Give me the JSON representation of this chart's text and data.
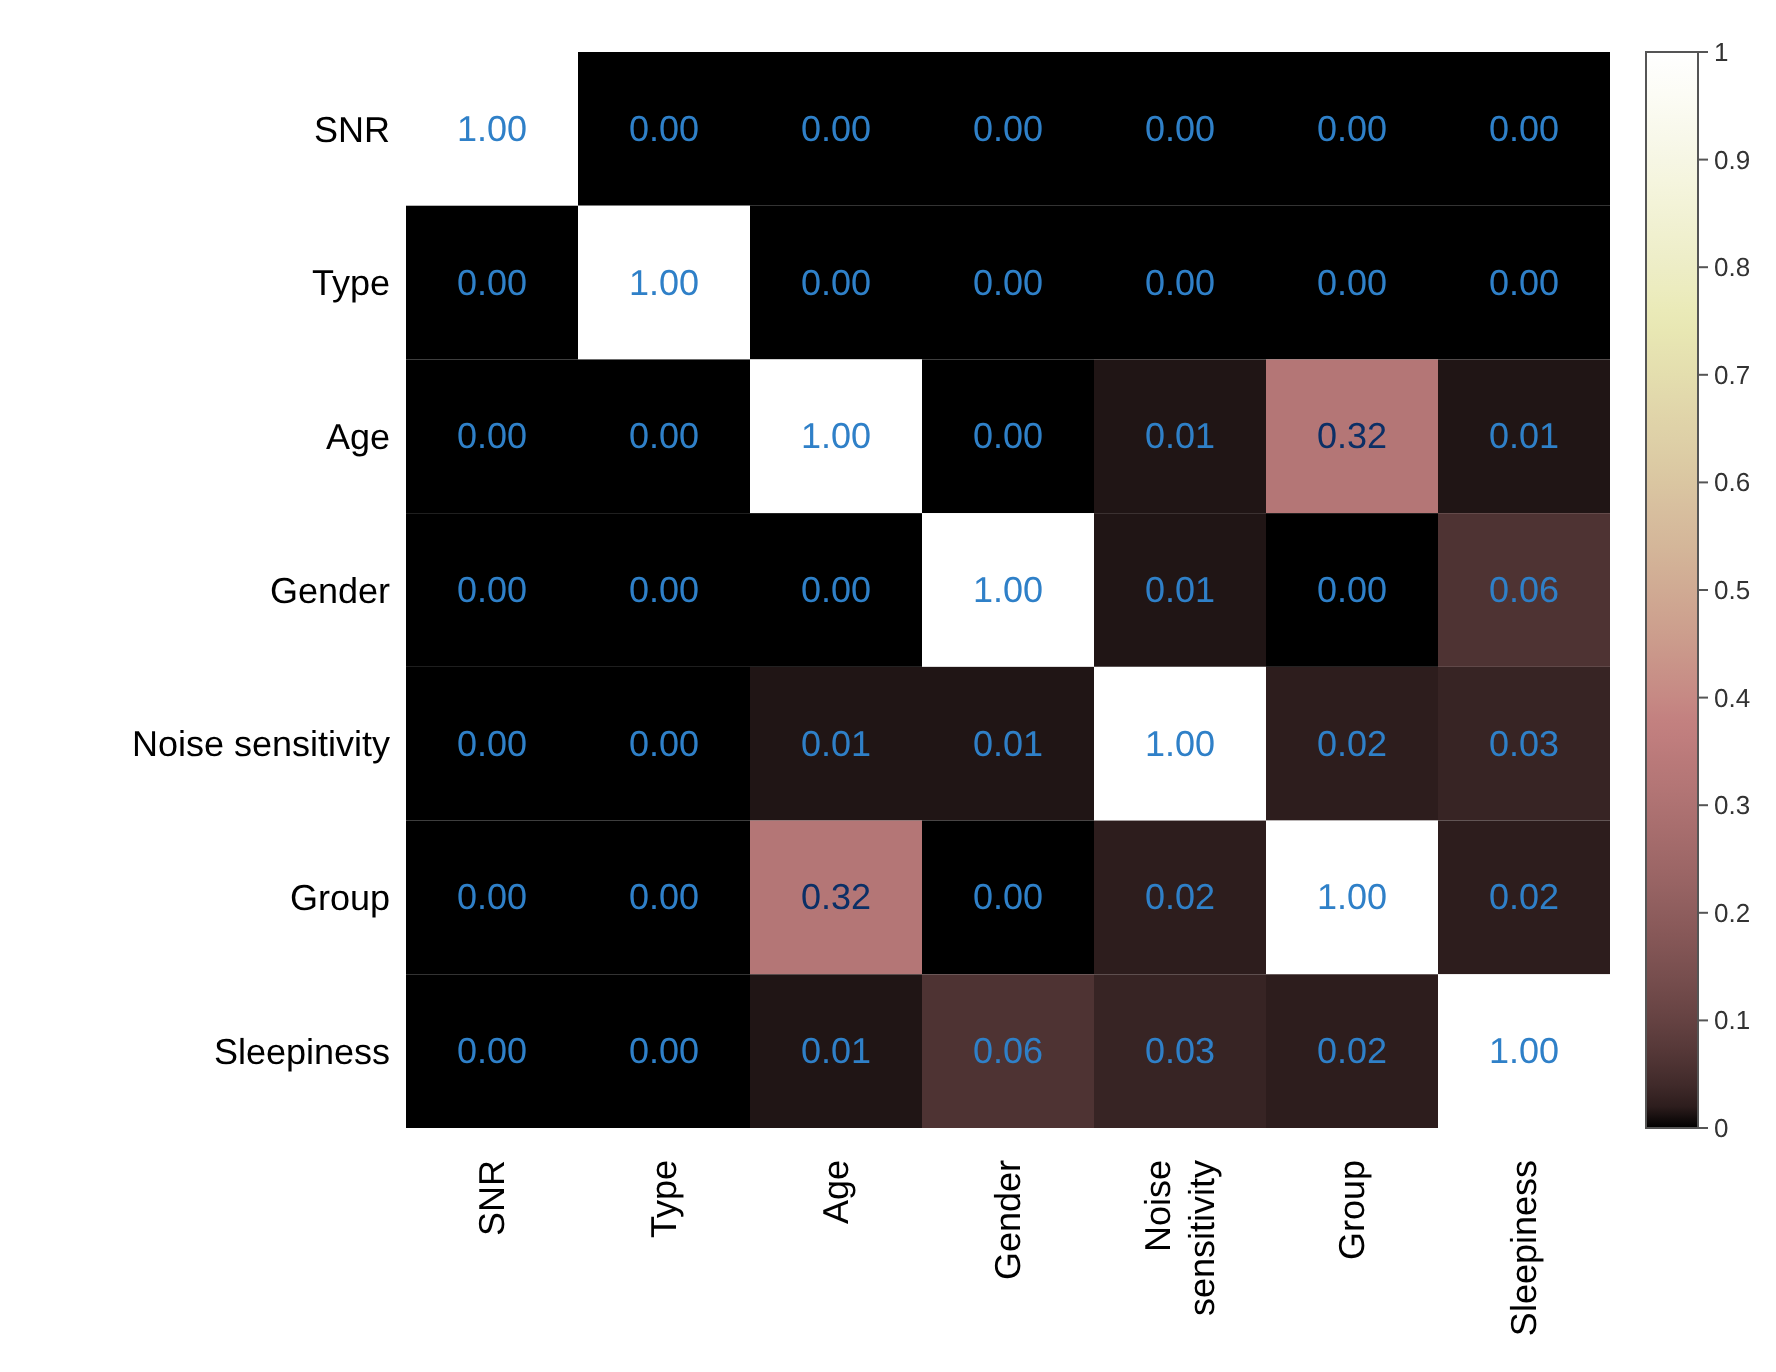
{
  "chart_data": {
    "type": "heatmap",
    "categories": [
      "SNR",
      "Type",
      "Age",
      "Gender",
      "Noise sensitivity",
      "Group",
      "Sleepiness"
    ],
    "y_categories": [
      "SNR",
      "Type",
      "Age",
      "Gender",
      "Noise sensitivity",
      "Group",
      "Sleepiness"
    ],
    "cells": [
      [
        1,
        0,
        0,
        0,
        0,
        0,
        0
      ],
      [
        0,
        1,
        0,
        0,
        0,
        0,
        0
      ],
      [
        0,
        0,
        1,
        0,
        0.01,
        0.32,
        0.01
      ],
      [
        0,
        0,
        0,
        1,
        0.01,
        0,
        0.06
      ],
      [
        0,
        0,
        0.01,
        0.01,
        1,
        0.02,
        0.03
      ],
      [
        0,
        0,
        0.32,
        0,
        0.02,
        1,
        0.02
      ],
      [
        0,
        0,
        0.01,
        0.06,
        0.03,
        0.02,
        1
      ]
    ],
    "cell_labels": [
      [
        "1.00",
        "0.00",
        "0.00",
        "0.00",
        "0.00",
        "0.00",
        "0.00"
      ],
      [
        "0.00",
        "1.00",
        "0.00",
        "0.00",
        "0.00",
        "0.00",
        "0.00"
      ],
      [
        "0.00",
        "0.00",
        "1.00",
        "0.00",
        "0.01",
        "0.32",
        "0.01"
      ],
      [
        "0.00",
        "0.00",
        "0.00",
        "1.00",
        "0.01",
        "0.00",
        "0.06"
      ],
      [
        "0.00",
        "0.00",
        "0.01",
        "0.01",
        "1.00",
        "0.02",
        "0.03"
      ],
      [
        "0.00",
        "0.00",
        "0.32",
        "0.00",
        "0.02",
        "1.00",
        "0.02"
      ],
      [
        "0.00",
        "0.00",
        "0.01",
        "0.06",
        "0.03",
        "0.02",
        "1.00"
      ]
    ],
    "clim": [
      0,
      1
    ],
    "cticks": [
      0,
      0.1,
      0.2,
      0.3,
      0.4,
      0.5,
      0.6,
      0.7,
      0.8,
      0.9,
      1
    ]
  }
}
